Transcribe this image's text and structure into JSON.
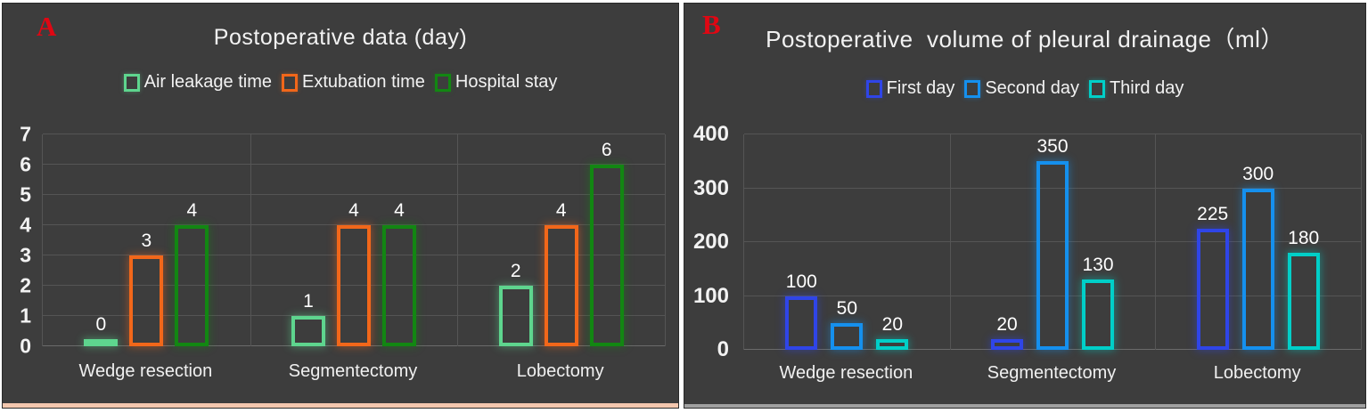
{
  "panels": [
    {
      "corner_label": "A",
      "corner_color": "#e00713",
      "background": "#3d3d3d",
      "bottom_strip_color": "#f4c7ae"
    },
    {
      "corner_label": "B",
      "corner_color": "#e00713",
      "background": "#3d3d3d",
      "bottom_strip_color": "#a0a0a0"
    }
  ],
  "chart_data": [
    {
      "type": "bar",
      "title": "Postoperative data (day)",
      "categories": [
        "Wedge resection",
        "Segmentectomy",
        "Lobectomy"
      ],
      "series": [
        {
          "name": "Air leakage time",
          "color": "#5ed58e",
          "values": [
            0,
            1,
            2
          ]
        },
        {
          "name": "Extubation time",
          "color": "#f2671a",
          "values": [
            3,
            4,
            4
          ]
        },
        {
          "name": "Hospital stay",
          "color": "#128712",
          "values": [
            4,
            4,
            6
          ]
        }
      ],
      "xlabel": "",
      "ylabel": "",
      "ylim": [
        0,
        7
      ],
      "yticks": [
        0,
        1,
        2,
        3,
        4,
        5,
        6,
        7
      ],
      "grid": true,
      "legend_position": "top",
      "bar_style": "hollow-outline",
      "data_labels": true,
      "text_color": "#f2f2f2"
    },
    {
      "type": "bar",
      "title": "Postoperative  volume of pleural drainage（ml）",
      "categories": [
        "Wedge resection",
        "Segmentectomy",
        "Lobectomy"
      ],
      "series": [
        {
          "name": "First day",
          "color": "#2f45e8",
          "values": [
            100,
            20,
            225
          ]
        },
        {
          "name": "Second day",
          "color": "#1590ee",
          "values": [
            50,
            350,
            300
          ]
        },
        {
          "name": "Third day",
          "color": "#00cfc8",
          "values": [
            20,
            130,
            180
          ]
        }
      ],
      "xlabel": "",
      "ylabel": "",
      "ylim": [
        0,
        400
      ],
      "yticks": [
        0,
        100,
        200,
        300,
        400
      ],
      "grid": true,
      "legend_position": "top",
      "bar_style": "hollow-outline",
      "data_labels": true,
      "text_color": "#f2f2f2"
    }
  ]
}
